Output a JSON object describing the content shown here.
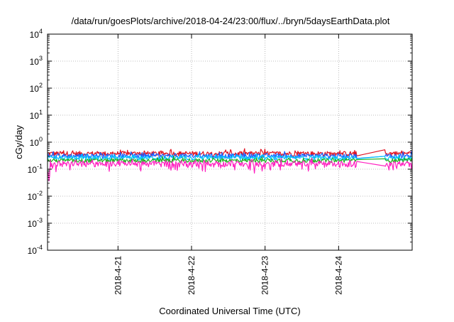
{
  "chart_data": {
    "type": "line",
    "title": "/data/run/goesPlots/archive/2018-04-24/23:00/flux/../bryn/5daysEarthData.plot",
    "xlabel": "Coordinated Universal Time (UTC)",
    "ylabel": "cGy/day",
    "y_scale": "log",
    "ylim_exponent": [
      -4,
      4
    ],
    "ytick_base": "10",
    "ytick_exponents": [
      "-4",
      "-3",
      "-2",
      "-1",
      "0",
      "1",
      "2",
      "3",
      "4"
    ],
    "x_range_days": [
      "2018-4-20 01:00",
      "2018-4-25 00:00"
    ],
    "x_ticks": [
      "2018-4-21",
      "2018-4-22",
      "2018-4-23",
      "2018-4-24"
    ],
    "grid": true,
    "legend": "none",
    "data_gap": [
      "2018-4-24 06:00",
      "2018-4-24 15:00"
    ],
    "series": [
      {
        "color": "#e01020",
        "typical_value": 0.38,
        "fluctuation": 0.3
      },
      {
        "color": "#1a60ff",
        "typical_value": 0.31,
        "fluctuation": 0.28
      },
      {
        "color": "#00c8ff",
        "typical_value": 0.26,
        "fluctuation": 0.26
      },
      {
        "color": "#20b020",
        "typical_value": 0.21,
        "fluctuation": 0.24
      },
      {
        "color": "#ff20c0",
        "typical_value": 0.16,
        "fluctuation": 0.34
      }
    ]
  }
}
